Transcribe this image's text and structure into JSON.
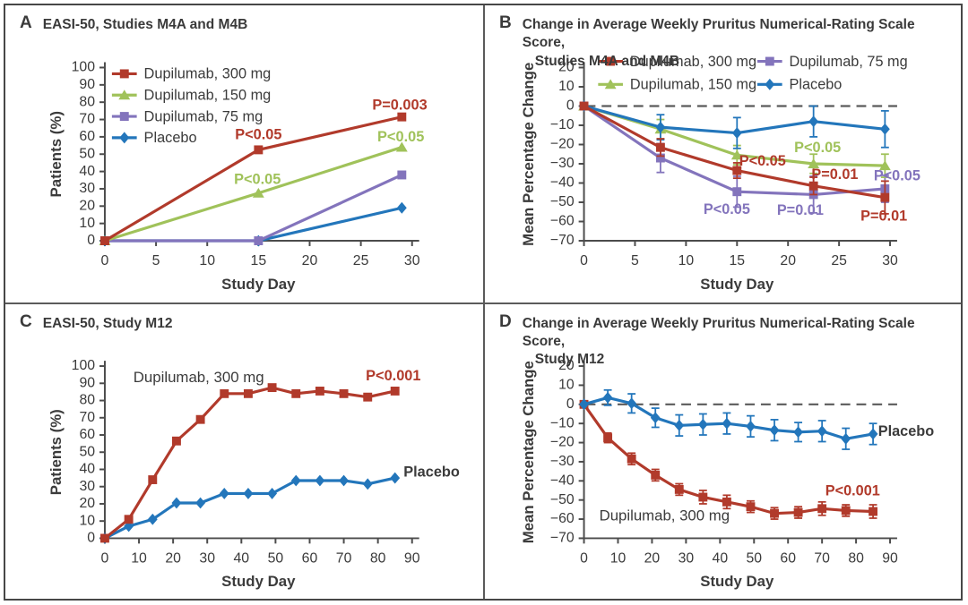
{
  "figure": {
    "background": "#ffffff",
    "outer_border_color": "#474747",
    "divider_color": "#5a5a5a",
    "axis_color": "#4c4c4c",
    "text_color": "#3b3b3b",
    "dashed_zero_color": "#5a5a5a"
  },
  "colors": {
    "red": "#b13a2b",
    "green": "#a0c25a",
    "purple": "#8374bc",
    "blue": "#2376bb",
    "text": "#3b3b3b"
  },
  "chart_data": [
    {
      "id": "A",
      "panel_letter": "A",
      "title_lines": [
        "EASI-50, Studies M4A and M4B"
      ],
      "type": "line",
      "xlabel": "Study Day",
      "ylabel": "Patients (%)",
      "xlim": [
        0,
        30
      ],
      "xticks": [
        0,
        5,
        10,
        15,
        20,
        25,
        30
      ],
      "ylim": [
        0,
        100
      ],
      "yticks": [
        0,
        10,
        20,
        30,
        40,
        50,
        60,
        70,
        80,
        90,
        100
      ],
      "zero_line": false,
      "grid": false,
      "legend_position": "inside-top-left-column",
      "legend_items": [
        {
          "label": "Dupilumab, 300 mg",
          "color_key": "red",
          "marker": "square"
        },
        {
          "label": "Dupilumab, 150 mg",
          "color_key": "green",
          "marker": "triangle"
        },
        {
          "label": "Dupilumab, 75 mg",
          "color_key": "purple",
          "marker": "square"
        },
        {
          "label": "Placebo",
          "color_key": "blue",
          "marker": "diamond"
        }
      ],
      "series": [
        {
          "name": "Placebo",
          "color_key": "blue",
          "marker": "diamond",
          "x": [
            0,
            15,
            29
          ],
          "y": [
            0,
            0,
            19
          ]
        },
        {
          "name": "Dupilumab, 75 mg",
          "color_key": "purple",
          "marker": "square",
          "x": [
            0,
            15,
            29
          ],
          "y": [
            0,
            0,
            38
          ]
        },
        {
          "name": "Dupilumab, 150 mg",
          "color_key": "green",
          "marker": "triangle",
          "x": [
            0,
            15,
            29
          ],
          "y": [
            0,
            27.5,
            54
          ]
        },
        {
          "name": "Dupilumab, 300 mg",
          "color_key": "red",
          "marker": "square",
          "x": [
            0,
            15,
            29
          ],
          "y": [
            0,
            52.5,
            71.5
          ]
        }
      ],
      "annotations": [
        {
          "text": "P<0.05",
          "x": 15,
          "y": 61,
          "color_key": "red",
          "anchor": "middle"
        },
        {
          "text": "P=0.003",
          "x": 28.8,
          "y": 78,
          "color_key": "red",
          "anchor": "middle"
        },
        {
          "text": "P<0.05",
          "x": 14.9,
          "y": 35,
          "color_key": "green",
          "anchor": "middle"
        },
        {
          "text": "P<0.05",
          "x": 28.9,
          "y": 59.5,
          "color_key": "green",
          "anchor": "middle"
        }
      ]
    },
    {
      "id": "B",
      "panel_letter": "B",
      "title_lines": [
        "Change in Average Weekly Pruritus Numerical-Rating Scale Score,",
        "Studies M4A and M4B"
      ],
      "type": "line",
      "xlabel": "Study Day",
      "ylabel": "Mean Percentage Change",
      "xlim": [
        0,
        30
      ],
      "xticks": [
        0,
        5,
        10,
        15,
        20,
        25,
        30
      ],
      "ylim": [
        -70,
        20
      ],
      "yticks": [
        -70,
        -60,
        -50,
        -40,
        -30,
        -20,
        -10,
        0,
        10,
        20
      ],
      "zero_line": true,
      "grid": false,
      "legend_position": "top-two-columns",
      "legend_items": [
        {
          "label": "Dupilumab, 300 mg",
          "color_key": "red",
          "marker": "square"
        },
        {
          "label": "Dupilumab, 150 mg",
          "color_key": "green",
          "marker": "triangle"
        },
        {
          "label": "Dupilumab, 75 mg",
          "color_key": "purple",
          "marker": "square"
        },
        {
          "label": "Placebo",
          "color_key": "blue",
          "marker": "diamond"
        }
      ],
      "series": [
        {
          "name": "Dupilumab, 75 mg",
          "color_key": "purple",
          "marker": "square",
          "x": [
            0,
            7.5,
            15,
            22.5,
            29.5
          ],
          "y": [
            0,
            -27,
            -44.5,
            -46,
            -43
          ],
          "err": [
            0,
            7.5,
            8,
            9.5,
            7
          ]
        },
        {
          "name": "Dupilumab, 150 mg",
          "color_key": "green",
          "marker": "triangle",
          "x": [
            0,
            7.5,
            15,
            22.5,
            29.5
          ],
          "y": [
            0,
            -12,
            -25.5,
            -30,
            -31
          ],
          "err": [
            0,
            5,
            5,
            5,
            6
          ]
        },
        {
          "name": "Placebo",
          "color_key": "blue",
          "marker": "diamond",
          "x": [
            0,
            7.5,
            15,
            22.5,
            29.5
          ],
          "y": [
            0,
            -11,
            -14,
            -8,
            -12
          ],
          "err": [
            0,
            6.5,
            8,
            8,
            9.5
          ]
        },
        {
          "name": "Dupilumab, 300 mg",
          "color_key": "red",
          "marker": "square",
          "x": [
            0,
            7.5,
            15,
            22.5,
            29.5
          ],
          "y": [
            0,
            -21.5,
            -33.5,
            -41.5,
            -47.5
          ],
          "err": [
            0,
            4.5,
            4,
            4.5,
            8.5
          ]
        }
      ],
      "annotations": [
        {
          "text": "P<0.05",
          "x": 17.5,
          "y": -29,
          "color_key": "red",
          "anchor": "middle"
        },
        {
          "text": "P=0.01",
          "x": 22.3,
          "y": -36,
          "color_key": "red",
          "anchor": "start"
        },
        {
          "text": "P=0.01",
          "x": 29.4,
          "y": -57.5,
          "color_key": "red",
          "anchor": "middle"
        },
        {
          "text": "P<0.05",
          "x": 22.9,
          "y": -22,
          "color_key": "green",
          "anchor": "middle"
        },
        {
          "text": "P<0.05",
          "x": 14,
          "y": -54,
          "color_key": "purple",
          "anchor": "middle"
        },
        {
          "text": "P=0.01",
          "x": 21.2,
          "y": -54.5,
          "color_key": "purple",
          "anchor": "middle"
        },
        {
          "text": "P<0.05",
          "x": 28.4,
          "y": -36.5,
          "color_key": "purple",
          "anchor": "start"
        }
      ]
    },
    {
      "id": "C",
      "panel_letter": "C",
      "title_lines": [
        "EASI-50, Study M12"
      ],
      "type": "line",
      "xlabel": "Study Day",
      "ylabel": "Patients (%)",
      "xlim": [
        0,
        90
      ],
      "xticks": [
        0,
        10,
        20,
        30,
        40,
        50,
        60,
        70,
        80,
        90
      ],
      "ylim": [
        0,
        100
      ],
      "yticks": [
        0,
        10,
        20,
        30,
        40,
        50,
        60,
        70,
        80,
        90,
        100
      ],
      "zero_line": false,
      "grid": false,
      "legend_position": "none",
      "legend_items": [],
      "series": [
        {
          "name": "Placebo",
          "color_key": "blue",
          "marker": "diamond",
          "x": [
            0,
            7,
            14,
            21,
            28,
            35,
            42,
            49,
            56,
            63,
            70,
            77,
            85
          ],
          "y": [
            0,
            7,
            11,
            20.5,
            20.5,
            26,
            26,
            26,
            33.5,
            33.5,
            33.5,
            31.5,
            35
          ]
        },
        {
          "name": "Dupilumab, 300 mg",
          "color_key": "red",
          "marker": "square",
          "x": [
            0,
            7,
            14,
            21,
            28,
            35,
            42,
            49,
            56,
            63,
            70,
            77,
            85
          ],
          "y": [
            0,
            11,
            34,
            56.5,
            69,
            84,
            84,
            87.5,
            84,
            85.5,
            84,
            82,
            85.5
          ]
        }
      ],
      "annotations": [
        {
          "text": "Dupilumab, 300 mg",
          "x": 27.5,
          "y": 93,
          "color_key": "text",
          "anchor": "middle"
        },
        {
          "text": "P<0.001",
          "x": 84.5,
          "y": 94,
          "color_key": "red",
          "anchor": "middle"
        },
        {
          "text": "Placebo",
          "x": 87.5,
          "y": 38,
          "color_key": "text",
          "anchor": "start"
        }
      ]
    },
    {
      "id": "D",
      "panel_letter": "D",
      "title_lines": [
        "Change in Average Weekly Pruritus Numerical-Rating Scale Score,",
        "Study M12"
      ],
      "type": "line",
      "xlabel": "Study Day",
      "ylabel": "Mean Percentage Change",
      "xlim": [
        0,
        90
      ],
      "xticks": [
        0,
        10,
        20,
        30,
        40,
        50,
        60,
        70,
        80,
        90
      ],
      "ylim": [
        -70,
        20
      ],
      "yticks": [
        -70,
        -60,
        -50,
        -40,
        -30,
        -20,
        -10,
        0,
        10,
        20
      ],
      "zero_line": true,
      "grid": false,
      "legend_position": "none",
      "legend_items": [],
      "series": [
        {
          "name": "Dupilumab, 300 mg",
          "color_key": "red",
          "marker": "square",
          "x": [
            0,
            7,
            14,
            21,
            28,
            35,
            42,
            49,
            56,
            63,
            70,
            77,
            85
          ],
          "y": [
            0,
            -17.5,
            -28.5,
            -37,
            -44.5,
            -48.5,
            -51,
            -53.5,
            -57,
            -56.5,
            -54.5,
            -55.5,
            -56
          ],
          "err": [
            0,
            2.5,
            3,
            3,
            3,
            3.5,
            3.5,
            3,
            3,
            3,
            3.5,
            3,
            3.5
          ]
        },
        {
          "name": "Placebo",
          "color_key": "blue",
          "marker": "diamond",
          "x": [
            0,
            7,
            14,
            21,
            28,
            35,
            42,
            49,
            56,
            63,
            70,
            77,
            85
          ],
          "y": [
            0,
            3.5,
            0.5,
            -7,
            -11,
            -10.5,
            -10,
            -11.5,
            -13.5,
            -14.5,
            -14,
            -18,
            -15.5
          ],
          "err": [
            0,
            4,
            5,
            5,
            5.5,
            5.5,
            5.5,
            5.5,
            5.5,
            5,
            5.5,
            5.5,
            5.5
          ]
        }
      ],
      "annotations": [
        {
          "text": "Placebo",
          "x": 86.5,
          "y": -14.5,
          "color_key": "text",
          "anchor": "start"
        },
        {
          "text": "P<0.001",
          "x": 79,
          "y": -45.5,
          "color_key": "red",
          "anchor": "middle"
        },
        {
          "text": "Dupilumab, 300 mg",
          "x": 4.5,
          "y": -58.5,
          "color_key": "text",
          "anchor": "start"
        }
      ]
    }
  ]
}
